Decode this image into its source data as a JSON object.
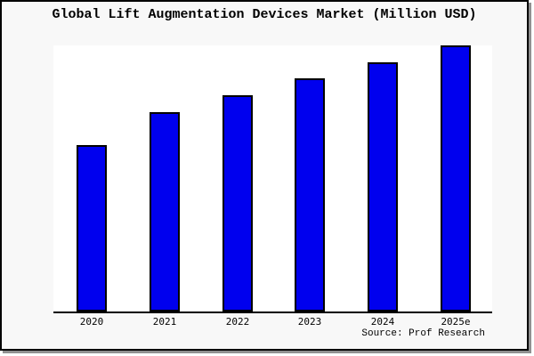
{
  "panel": {
    "background": "#f8f8f8",
    "border_color": "#000000",
    "shadow_color": "#909090",
    "page_background": "#ffffff"
  },
  "title": "Global Lift Augmentation Devices Market (Million USD)",
  "source": "Source: Prof Research",
  "chart_data": {
    "type": "bar",
    "title": "Global Lift Augmentation Devices Market (Million USD)",
    "categories": [
      "2020",
      "2021",
      "2022",
      "2023",
      "2024",
      "2025e"
    ],
    "values": [
      62.7,
      75.0,
      81.3,
      87.7,
      93.7,
      100.0
    ],
    "values_note": "no y-axis, gridlines or data labels shown; values are relative bar heights normalized to 2025e = 100",
    "xlabel": "",
    "ylabel": "",
    "ylim": [
      0,
      100
    ],
    "y_axis_visible": false,
    "gridlines": false,
    "legend": false,
    "bar_fill_color": "#0000ee",
    "bar_border_color": "#000000",
    "axis_color": "#000000",
    "plot_background": "#ffffff"
  }
}
